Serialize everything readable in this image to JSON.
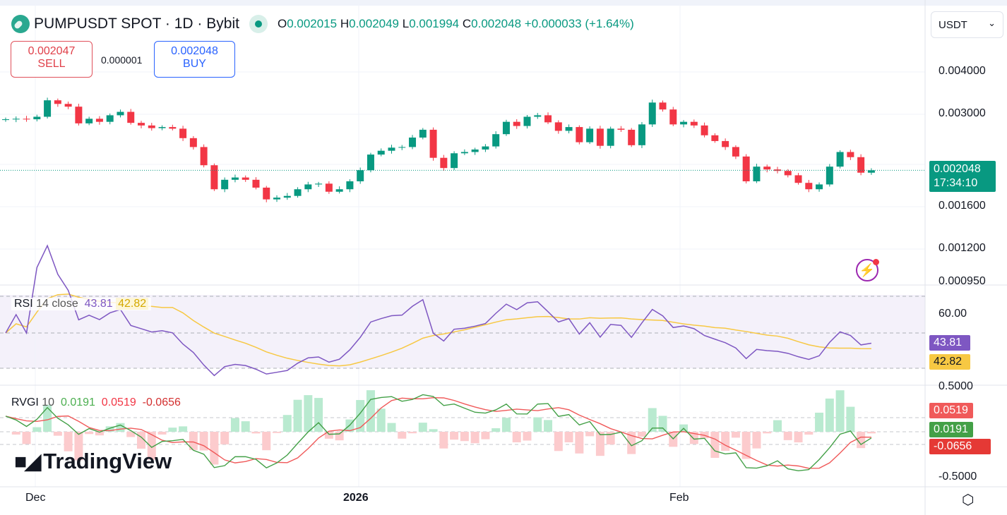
{
  "header": {
    "symbol": "PUMPUSDT SPOT · 1D · Bybit",
    "open_label": "O",
    "open": "0.002015",
    "high_label": "H",
    "high": "0.002049",
    "low_label": "L",
    "low": "0.001994",
    "close_label": "C",
    "close": "0.002048",
    "change": "+0.000033 (+1.64%)"
  },
  "trade": {
    "sell_price": "0.002047",
    "sell_label": "SELL",
    "spread": "0.000001",
    "buy_price": "0.002048",
    "buy_label": "BUY"
  },
  "currency_select": {
    "value": "USDT"
  },
  "price_axis": {
    "ticks": [
      "0.004000",
      "0.003000",
      "0.001600",
      "0.001200",
      "0.000950"
    ],
    "last_price": "0.002048",
    "countdown": "17:34:10",
    "scale": "log"
  },
  "rsi": {
    "label": "RSI",
    "params": "14 close",
    "value": "43.81",
    "ma_value": "42.82",
    "tick": "60.00",
    "color": "#7e57c2",
    "ma_color": "#f7c843"
  },
  "rvgi": {
    "label": "RVGI",
    "params": "10",
    "v1": "0.0191",
    "v2": "0.0519",
    "v3": "-0.0656",
    "ticks": [
      "0.5000",
      "-0.5000"
    ],
    "colors": [
      "#4caf50",
      "#f23645"
    ]
  },
  "time_axis": [
    "Dec",
    "2026",
    "Feb"
  ],
  "watermark": "TradingView",
  "colors": {
    "up": "#089981",
    "down": "#f23645"
  },
  "chart_data": {
    "type": "candlestick",
    "first_date": "Nov 28",
    "last_date": "Feb 19",
    "closes": [
      0.0029,
      0.00291,
      0.0029,
      0.00295,
      0.0033,
      0.00322,
      0.00316,
      0.00282,
      0.00291,
      0.00285,
      0.00298,
      0.00305,
      0.00283,
      0.00278,
      0.00273,
      0.00275,
      0.00272,
      0.00255,
      0.0024,
      0.00212,
      0.0018,
      0.00192,
      0.00195,
      0.00192,
      0.00182,
      0.00168,
      0.0017,
      0.00172,
      0.0018,
      0.00186,
      0.00187,
      0.00177,
      0.0018,
      0.0019,
      0.00205,
      0.00228,
      0.00234,
      0.00239,
      0.0024,
      0.00256,
      0.0027,
      0.00223,
      0.00208,
      0.0023,
      0.00232,
      0.00236,
      0.00241,
      0.00262,
      0.00285,
      0.00277,
      0.00295,
      0.00298,
      0.00284,
      0.00268,
      0.00275,
      0.00248,
      0.00272,
      0.00242,
      0.00272,
      0.0027,
      0.00243,
      0.0028,
      0.00325,
      0.0031,
      0.0028,
      0.00285,
      0.00278,
      0.0026,
      0.0025,
      0.0024,
      0.00225,
      0.0019,
      0.0021,
      0.00206,
      0.00204,
      0.00198,
      0.00188,
      0.0018,
      0.00186,
      0.0021,
      0.00232,
      0.00224,
      0.002015,
      0.002048
    ],
    "y_range": [
      0.00095,
      0.0045
    ]
  }
}
